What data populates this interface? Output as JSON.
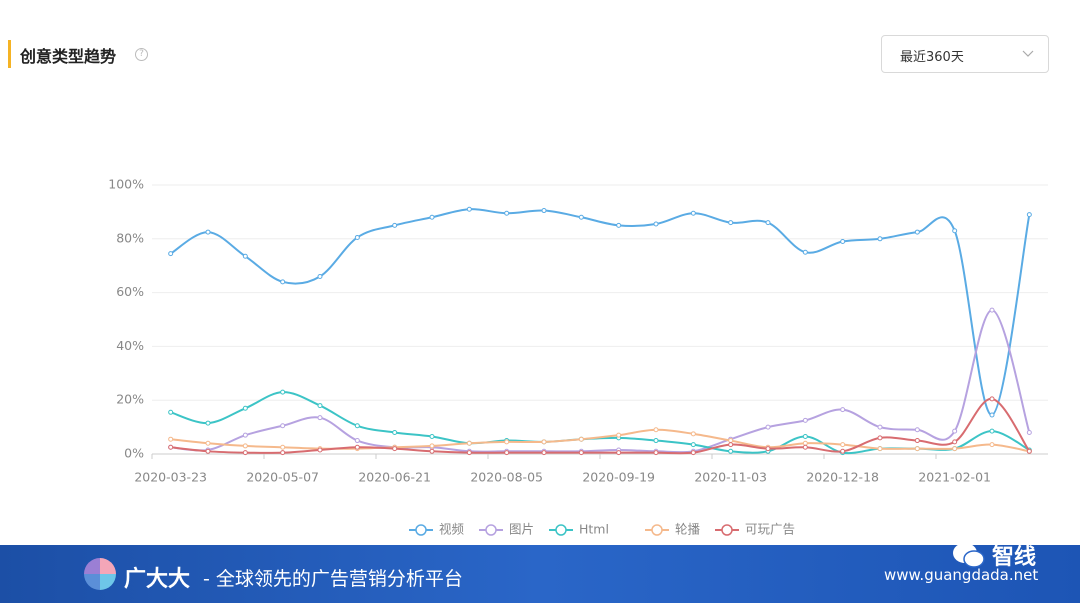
{
  "header": {
    "title": "创意类型趋势",
    "range": "最近360天"
  },
  "chart_data": {
    "type": "line",
    "categories": [
      "2020-03-23",
      null,
      null,
      "2020-05-07",
      null,
      null,
      "2020-06-21",
      null,
      null,
      "2020-08-05",
      null,
      null,
      "2020-09-19",
      null,
      null,
      "2020-11-03",
      null,
      null,
      "2020-12-18",
      null,
      null,
      "2021-02-01",
      null,
      null
    ],
    "ylim": [
      0,
      100
    ],
    "yticks": [
      {
        "value": 0,
        "label": "0%"
      },
      {
        "value": 20,
        "label": "20%"
      },
      {
        "value": 40,
        "label": "40%"
      },
      {
        "value": 60,
        "label": "60%"
      },
      {
        "value": 80,
        "label": "80%"
      },
      {
        "value": 100,
        "label": "100%"
      }
    ],
    "grid": true,
    "legend": "bottom",
    "series": [
      {
        "name": "视频",
        "color": "#5aabe4",
        "values": [
          74.5,
          82.5,
          73.5,
          64,
          66,
          80.5,
          85,
          88,
          91,
          89.5,
          90.5,
          88,
          85,
          85.5,
          89.5,
          86,
          86,
          75,
          79,
          80,
          82.5,
          83,
          14.5,
          89
        ]
      },
      {
        "name": "图片",
        "color": "#b6a2e0",
        "values": [
          2.5,
          1.5,
          7,
          10.5,
          13.5,
          5,
          2.5,
          2.5,
          1,
          1,
          1,
          1,
          1.5,
          1,
          1,
          5.5,
          10,
          12.5,
          16.5,
          10,
          9,
          8.5,
          53.5,
          8
        ]
      },
      {
        "name": "Html",
        "color": "#3cc4c6",
        "values": [
          15.5,
          11.5,
          17,
          23,
          18,
          10.5,
          8,
          6.5,
          4,
          5,
          4.5,
          5.5,
          6,
          5,
          3.5,
          1,
          1,
          6.5,
          0.5,
          2,
          2,
          2,
          8.5,
          1.5
        ]
      },
      {
        "name": "轮播",
        "color": "#f5b98c",
        "values": [
          5.5,
          4,
          3,
          2.5,
          2,
          2,
          2.5,
          3,
          4,
          4.5,
          4.5,
          5.5,
          7,
          9,
          7.5,
          5,
          2.5,
          4,
          3.5,
          2,
          2,
          2,
          3.5,
          1
        ]
      },
      {
        "name": "可玩广告",
        "color": "#d86c70",
        "values": [
          2.5,
          1,
          0.5,
          0.5,
          1.5,
          2.5,
          2,
          1,
          0.5,
          0.5,
          0.5,
          0.5,
          0.5,
          0.5,
          0.5,
          3.5,
          2,
          2.5,
          1,
          6,
          5,
          4.5,
          20.5,
          1
        ]
      }
    ]
  },
  "footer": {
    "brand": "广大大",
    "slogan": "- 全球领先的广告营销分析平台",
    "wechat": "智线",
    "url": "www.guangdada.net"
  }
}
